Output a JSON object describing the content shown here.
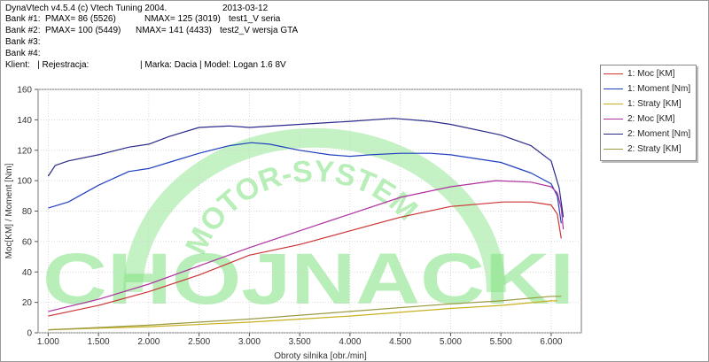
{
  "header": {
    "line1a": "DynaVtech v4.5.4 (c) Vtech Tuning 2004.",
    "line1b": "2013-03-12",
    "bank1a": "Bank #1:  PMAX= 86 (5526)",
    "bank1b": "NMAX= 125 (3019)",
    "bank1c": "test1_V seria",
    "bank2a": "Bank #2:  PMAX= 100 (5449)",
    "bank2b": "NMAX= 141 (4433)",
    "bank2c": "test2_V wersja GTA",
    "bank3": "Bank #3:",
    "bank4": "Bank #4:",
    "client": "Klient:   | Rejestracja:",
    "car": "| Marka: Dacia | Model: Logan 1.6 8V"
  },
  "watermark": {
    "text": "CHOJNACKI",
    "arc_text": "MOTOR-SYSTEM",
    "color": "#7fe37f"
  },
  "chart_data": {
    "type": "line",
    "xlabel": "Obroty silnika [obr./min]",
    "ylabel": "Moc[KM] / Moment [Nm]",
    "xlim": [
      900,
      6300
    ],
    "ylim": [
      0,
      160
    ],
    "x_ticks": [
      1000,
      1500,
      2000,
      2500,
      3000,
      3500,
      4000,
      4500,
      5000,
      5500,
      6000
    ],
    "x_tick_labels": [
      "1.000",
      "1.500",
      "2.000",
      "2.500",
      "3.000",
      "3.500",
      "4.000",
      "4.500",
      "5.000",
      "5.500",
      "6.000"
    ],
    "y_ticks": [
      0,
      20,
      40,
      60,
      80,
      100,
      120,
      140,
      160
    ],
    "y_tick_labels": [
      "0",
      "20",
      "40",
      "60",
      "80",
      "100",
      "120",
      "140",
      "160"
    ],
    "grid": true,
    "legend_position": "right",
    "series": [
      {
        "name": "1: Moc [KM]",
        "color": "#cc3333",
        "points": [
          [
            1000,
            11
          ],
          [
            1500,
            18
          ],
          [
            2000,
            27
          ],
          [
            2500,
            38
          ],
          [
            3000,
            51
          ],
          [
            3500,
            58
          ],
          [
            4000,
            67
          ],
          [
            4500,
            76
          ],
          [
            5000,
            83
          ],
          [
            5526,
            86
          ],
          [
            5800,
            86
          ],
          [
            6000,
            84
          ],
          [
            6060,
            78
          ],
          [
            6100,
            62
          ]
        ]
      },
      {
        "name": "1: Moment [Nm]",
        "color": "#1f3fbf",
        "points": [
          [
            1000,
            82
          ],
          [
            1200,
            86
          ],
          [
            1500,
            97
          ],
          [
            1800,
            106
          ],
          [
            2000,
            108
          ],
          [
            2200,
            112
          ],
          [
            2500,
            118
          ],
          [
            2800,
            123
          ],
          [
            3019,
            125
          ],
          [
            3200,
            124
          ],
          [
            3500,
            120
          ],
          [
            3800,
            117
          ],
          [
            4000,
            116
          ],
          [
            4200,
            117
          ],
          [
            4500,
            118
          ],
          [
            4800,
            118
          ],
          [
            5000,
            117
          ],
          [
            5500,
            112
          ],
          [
            5800,
            105
          ],
          [
            6000,
            98
          ],
          [
            6060,
            90
          ],
          [
            6100,
            72
          ]
        ]
      },
      {
        "name": "1: Straty [KM]",
        "color": "#c9b020",
        "points": [
          [
            1000,
            2
          ],
          [
            2000,
            4
          ],
          [
            3000,
            7
          ],
          [
            4000,
            11
          ],
          [
            5000,
            16
          ],
          [
            5500,
            18
          ],
          [
            6000,
            21
          ],
          [
            6060,
            21
          ]
        ]
      },
      {
        "name": "2: Moc [KM]",
        "color": "#b030a0",
        "points": [
          [
            1000,
            14
          ],
          [
            1500,
            22
          ],
          [
            2000,
            32
          ],
          [
            2500,
            44
          ],
          [
            3000,
            56
          ],
          [
            3500,
            67
          ],
          [
            4000,
            78
          ],
          [
            4500,
            89
          ],
          [
            5000,
            96
          ],
          [
            5449,
            100
          ],
          [
            5800,
            99
          ],
          [
            6000,
            96
          ],
          [
            6060,
            92
          ],
          [
            6100,
            82
          ],
          [
            6120,
            68
          ]
        ]
      },
      {
        "name": "2: Moment [Nm]",
        "color": "#2a2a8a",
        "points": [
          [
            1000,
            103
          ],
          [
            1070,
            110
          ],
          [
            1200,
            113
          ],
          [
            1500,
            117
          ],
          [
            1800,
            122
          ],
          [
            2000,
            124
          ],
          [
            2200,
            129
          ],
          [
            2500,
            135
          ],
          [
            2800,
            136
          ],
          [
            3000,
            135
          ],
          [
            3500,
            137
          ],
          [
            4000,
            139
          ],
          [
            4433,
            141
          ],
          [
            4800,
            139
          ],
          [
            5000,
            137
          ],
          [
            5500,
            130
          ],
          [
            5800,
            123
          ],
          [
            6000,
            113
          ],
          [
            6080,
            95
          ],
          [
            6120,
            76
          ]
        ]
      },
      {
        "name": "2: Straty [KM]",
        "color": "#9a9a40",
        "points": [
          [
            1000,
            2
          ],
          [
            2000,
            5
          ],
          [
            3000,
            9
          ],
          [
            4000,
            14
          ],
          [
            5000,
            19
          ],
          [
            5500,
            21
          ],
          [
            6000,
            24
          ],
          [
            6100,
            24
          ]
        ]
      }
    ]
  }
}
